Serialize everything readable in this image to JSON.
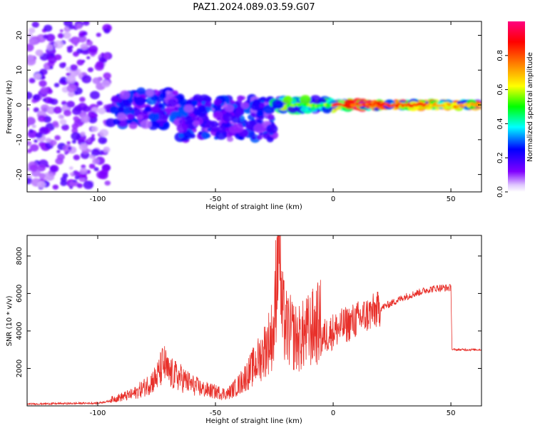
{
  "title": "PAZ1.2024.089.03.59.G07",
  "chart_data": [
    {
      "type": "heatmap",
      "xlabel": "Height of straight line (km)",
      "ylabel": "Frequency (Hz)",
      "xlim": [
        -130,
        63
      ],
      "ylim": [
        -25,
        24
      ],
      "xticks": [
        -100,
        -50,
        0,
        50
      ],
      "yticks": [
        20,
        10,
        0,
        -10,
        -20
      ],
      "grid": false,
      "colorbar": {
        "label": "Normalized spectral amplitude",
        "range": [
          0,
          1
        ],
        "ticks": [
          0.0,
          0.2,
          0.4,
          0.6,
          0.8
        ],
        "colormap": "gist_rainbow",
        "colors": [
          "#ff00ff",
          "#0000ff",
          "#00ffff",
          "#00ff00",
          "#ffff00",
          "#ff8000",
          "#ff0000",
          "#ff0080"
        ]
      },
      "regions": [
        {
          "x_range": [
            -130,
            -95
          ],
          "freq_center": 0,
          "freq_spread": 24,
          "amplitude": 0.15
        },
        {
          "x_range": [
            -95,
            -65
          ],
          "freq_center": -1,
          "freq_spread": 5,
          "amplitude": 0.25
        },
        {
          "x_range": [
            -65,
            -25
          ],
          "freq_center": -4,
          "freq_spread": 6,
          "amplitude": 0.25
        },
        {
          "x_range": [
            -25,
            0
          ],
          "freq_center": 0,
          "freq_spread": 1.5,
          "amplitude": 0.5
        },
        {
          "x_range": [
            0,
            20
          ],
          "freq_center": 0,
          "freq_spread": 0.6,
          "amplitude": 0.85
        },
        {
          "x_range": [
            20,
            63
          ],
          "freq_center": 0,
          "freq_spread": 0.4,
          "amplitude": 0.8
        }
      ]
    },
    {
      "type": "line",
      "xlabel": "Height of straight line (km)",
      "ylabel": "SNR (10 * v/v)",
      "xlim": [
        -130,
        63
      ],
      "ylim": [
        0,
        9100
      ],
      "xticks": [
        -100,
        -50,
        0,
        50
      ],
      "yticks": [
        2000,
        4000,
        6000,
        8000
      ],
      "grid": false,
      "series": [
        {
          "color": "#e8302a",
          "x": [
            -130,
            -100,
            -95,
            -85,
            -80,
            -75,
            -72,
            -70,
            -65,
            -60,
            -55,
            -50,
            -45,
            -40,
            -35,
            -30,
            -27,
            -25,
            -23,
            -22,
            -20,
            -15,
            -10,
            -5,
            0,
            5,
            10,
            15,
            20,
            25,
            30,
            35,
            40,
            45,
            50,
            50.5,
            55,
            63
          ],
          "values": [
            100,
            150,
            250,
            500,
            800,
            1200,
            1800,
            1400,
            1200,
            900,
            700,
            600,
            500,
            900,
            1500,
            2200,
            2800,
            3200,
            9000,
            4000,
            3300,
            2800,
            3200,
            3600,
            4000,
            4300,
            4600,
            4900,
            5200,
            5500,
            5800,
            6000,
            6200,
            6300,
            6300,
            3000,
            3000,
            3000
          ]
        }
      ]
    }
  ]
}
